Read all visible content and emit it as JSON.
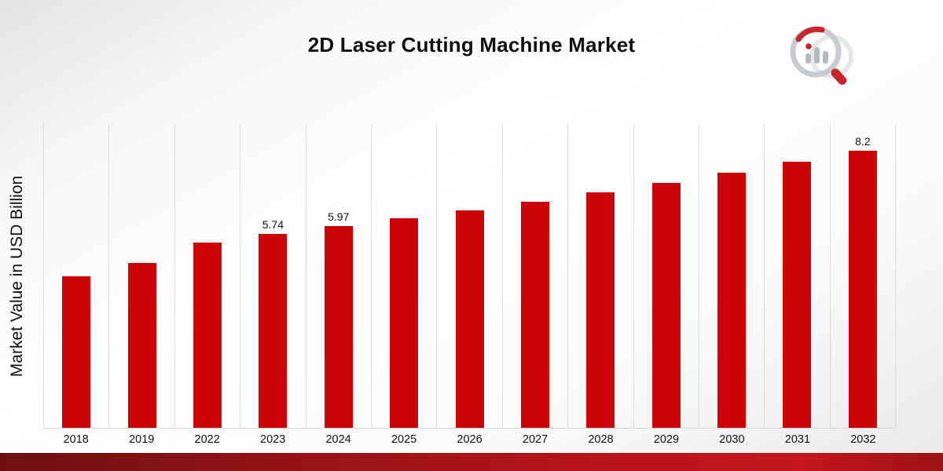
{
  "page": {
    "title": "2D Laser Cutting Machine Market"
  },
  "chart_data": {
    "type": "bar",
    "title": "2D Laser Cutting Machine Market",
    "xlabel": "",
    "ylabel": "Market Value in USD Billion",
    "categories": [
      "2018",
      "2019",
      "2022",
      "2023",
      "2024",
      "2025",
      "2026",
      "2027",
      "2028",
      "2029",
      "2030",
      "2031",
      "2032"
    ],
    "values": [
      4.5,
      4.88,
      5.5,
      5.74,
      5.97,
      6.2,
      6.45,
      6.7,
      6.97,
      7.25,
      7.55,
      7.88,
      8.2
    ],
    "data_labels": {
      "2023": "5.74",
      "2024": "5.97",
      "2032": "8.2"
    },
    "ylim": [
      0,
      9
    ],
    "grid": "vertical",
    "legend": "none",
    "bar_color": "#cc0508",
    "gridline_color": "#dcdcdc"
  },
  "footer": {
    "band_color_left": "#6d0f12",
    "band_color_right": "#c4161b"
  }
}
